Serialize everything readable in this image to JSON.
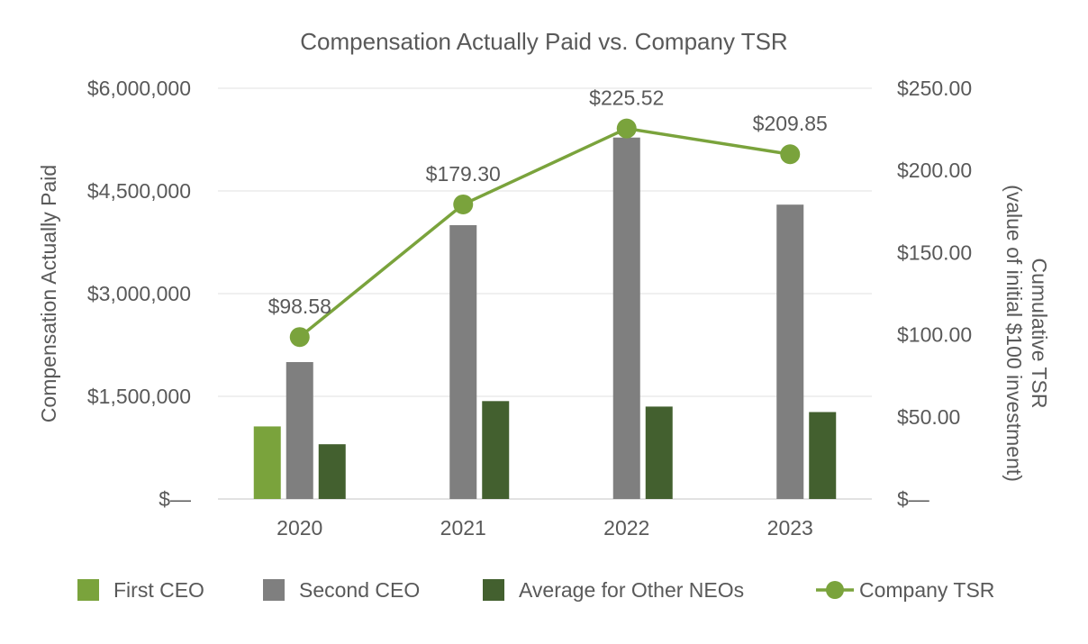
{
  "chart_data": {
    "type": "bar",
    "title": "Compensation Actually Paid vs. Company TSR",
    "categories": [
      "2020",
      "2021",
      "2022",
      "2023"
    ],
    "ylabel": "Compensation Actually Paid",
    "y2label_line1": "Cumulative TSR",
    "y2label_line2": "(value of initial $100 investment)",
    "ylim": [
      0,
      6000000
    ],
    "y2lim": [
      0,
      250
    ],
    "y_ticks": [
      0,
      1500000,
      3000000,
      4500000,
      6000000
    ],
    "y_tick_labels": [
      "$—",
      "$1,500,000",
      "$3,000,000",
      "$4,500,000",
      "$6,000,000"
    ],
    "y2_ticks": [
      0,
      50,
      100,
      150,
      200,
      250
    ],
    "y2_tick_labels": [
      "$—",
      "$50.00",
      "$100.00",
      "$150.00",
      "$200.00",
      "$250.00"
    ],
    "grid": true,
    "legend_position": "bottom",
    "series": [
      {
        "name": "First CEO",
        "type": "bar",
        "color": "#7aa33c",
        "values": [
          1060000,
          null,
          null,
          null
        ]
      },
      {
        "name": "Second CEO",
        "type": "bar",
        "color": "#7f7f7f",
        "values": [
          2000000,
          4000000,
          5280000,
          4300000
        ]
      },
      {
        "name": "Average for Other NEOs",
        "type": "bar",
        "color": "#43602f",
        "values": [
          800000,
          1430000,
          1350000,
          1270000
        ]
      },
      {
        "name": "Company TSR",
        "type": "line",
        "axis": "right",
        "color": "#7aa33c",
        "values": [
          98.58,
          179.3,
          225.52,
          209.85
        ],
        "labels": [
          "$98.58",
          "$179.30",
          "$225.52",
          "$209.85"
        ]
      }
    ]
  }
}
